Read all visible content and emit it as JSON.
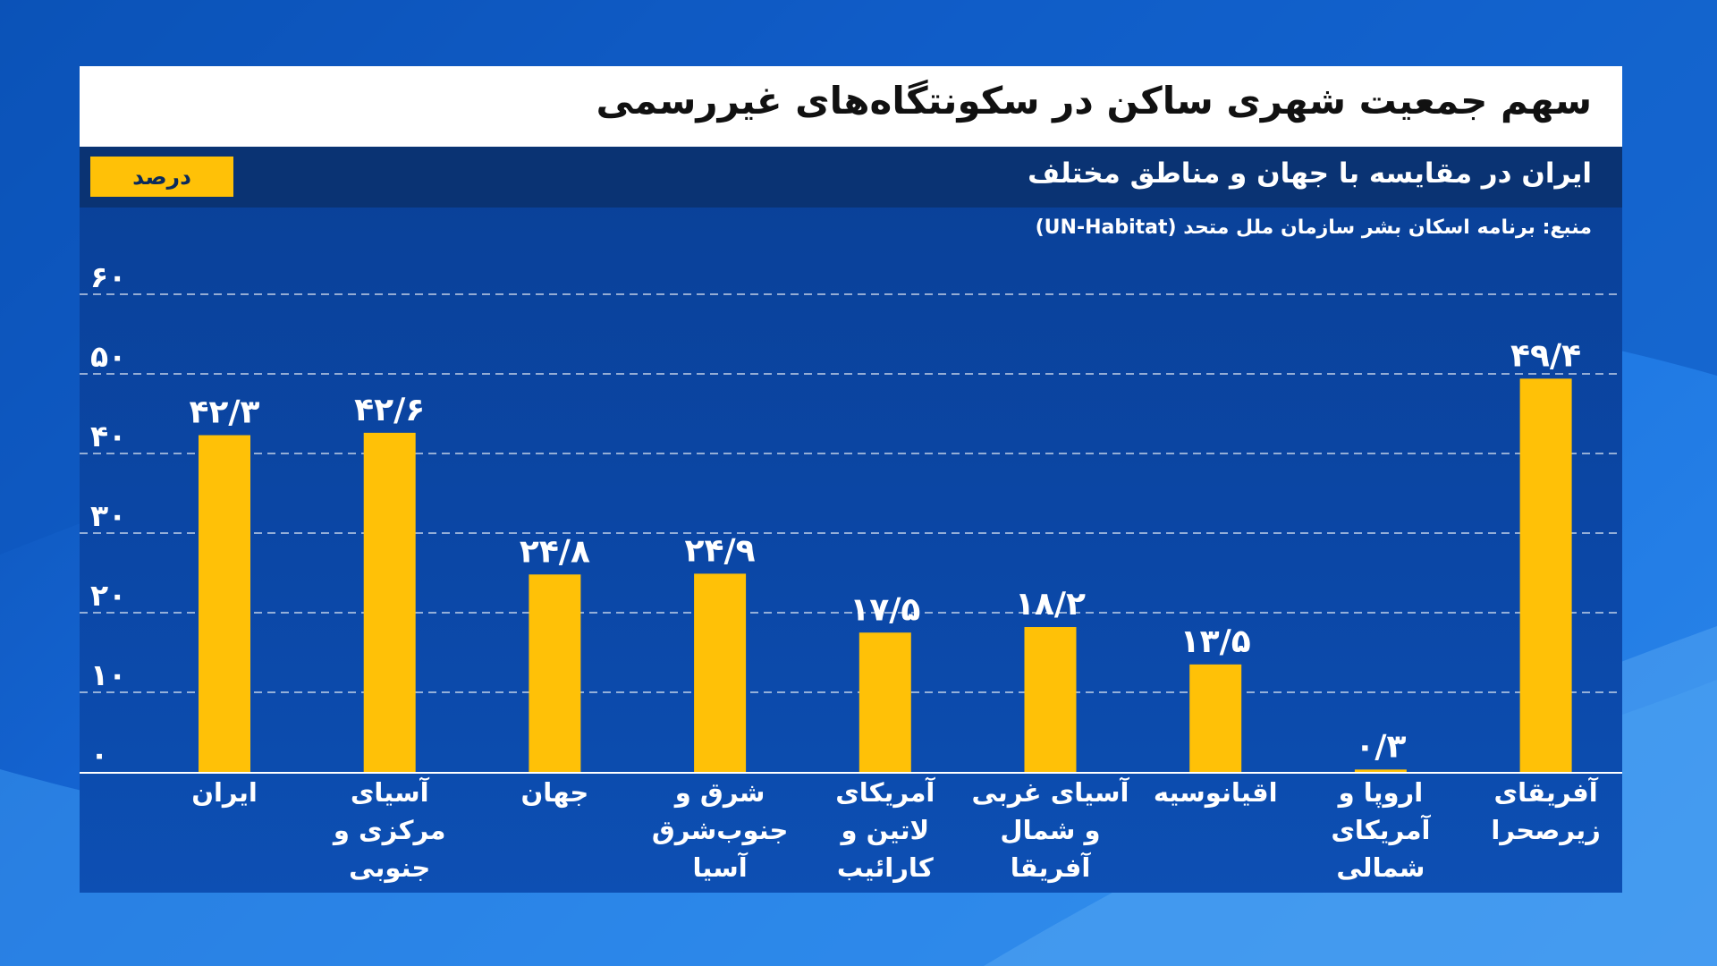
{
  "title": "سهم جمعیت شهری ساکن در سکونتگاه‌های غیررسمی",
  "subtitle": "ایران در مقایسه با جهان و مناطق مختلف",
  "unit": "درصد",
  "source": "منبع: برنامه اسکان بشر سازمان ملل متحد (UN-Habitat)",
  "colors": {
    "bar": "#ffc107",
    "plot_background": "#0b47a6",
    "title_background": "#ffffff",
    "subtitle_background": "#0a3373",
    "text": "#ffffff"
  },
  "chart_data": {
    "type": "bar",
    "categories": [
      [
        "ایران"
      ],
      [
        "آسیای",
        "مرکزی و",
        "جنوبی"
      ],
      [
        "جهان"
      ],
      [
        "شرق و",
        "جنوب‌شرق",
        "آسیا"
      ],
      [
        "آمریکای",
        "لاتین و",
        "کارائیب"
      ],
      [
        "آسیای غربی",
        "و شمال",
        "آفریقا"
      ],
      [
        "اقیانوسیه"
      ],
      [
        "اروپا و",
        "آمریکای",
        "شمالی"
      ],
      [
        "آفریقای",
        "زیرصحرا"
      ]
    ],
    "values": [
      42.3,
      42.6,
      24.8,
      24.9,
      17.5,
      18.2,
      13.5,
      0.3,
      49.4
    ],
    "value_labels": [
      "۴۲/۳",
      "۴۲/۶",
      "۲۴/۸",
      "۲۴/۹",
      "۱۷/۵",
      "۱۸/۲",
      "۱۳/۵",
      "۰/۳",
      "۴۹/۴"
    ],
    "yticks": [
      0,
      10,
      20,
      30,
      40,
      50,
      60
    ],
    "ytick_labels": [
      "۰",
      "۱۰",
      "۲۰",
      "۳۰",
      "۴۰",
      "۵۰",
      "۶۰"
    ],
    "ylim": [
      0,
      60
    ],
    "grid": true,
    "grid_style": "dashed",
    "title": "سهم جمعیت شهری ساکن در سکونتگاه‌های غیررسمی",
    "xlabel": "",
    "ylabel": "درصد"
  }
}
